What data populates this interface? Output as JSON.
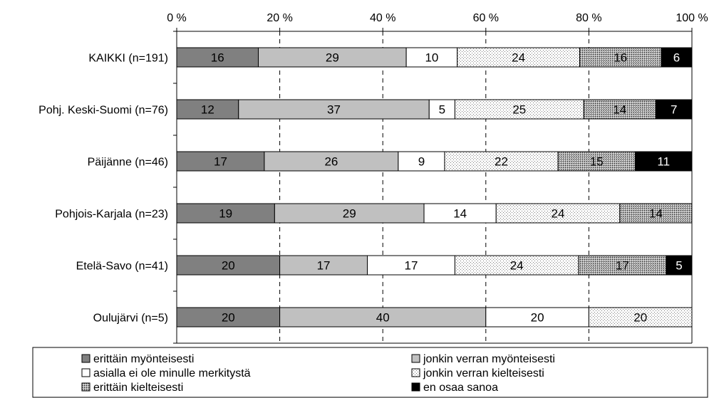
{
  "chart_data": {
    "type": "bar",
    "orientation": "horizontal",
    "stacked": true,
    "percent_axis": true,
    "title": "",
    "xlabel": "",
    "ylabel": "",
    "xlim": [
      0,
      100
    ],
    "x_ticks": [
      "0 %",
      "20 %",
      "40 %",
      "60 %",
      "80 %",
      "100 %"
    ],
    "grid": "dashed vertical",
    "legend_position": "bottom",
    "categories": [
      "KAIKKI (n=191)",
      "Pohj. Keski-Suomi (n=76)",
      "Päijänne (n=46)",
      "Pohjois-Karjala (n=23)",
      "Etelä-Savo (n=41)",
      "Oulujärvi (n=5)"
    ],
    "series": [
      {
        "name": "erittäin myönteisesti",
        "color": "#808080",
        "values": [
          16,
          12,
          17,
          19,
          20,
          20
        ],
        "labels": [
          "16",
          "12",
          "17",
          "19",
          "20",
          "20"
        ]
      },
      {
        "name": "jonkin verran myönteisesti",
        "color": "#c0c0c0",
        "values": [
          29,
          37,
          26,
          29,
          17,
          40
        ],
        "labels": [
          "29",
          "37",
          "26",
          "29",
          "17",
          "40"
        ]
      },
      {
        "name": "asialla ei ole minulle merkitystä",
        "color": "#ffffff",
        "values": [
          10,
          5,
          9,
          14,
          17,
          20
        ],
        "labels": [
          "10",
          "5",
          "9",
          "14",
          "17",
          "20"
        ]
      },
      {
        "name": "jonkin verran kielteisesti",
        "color": "#e0e0e0",
        "values": [
          24,
          25,
          22,
          24,
          24,
          20
        ],
        "labels": [
          "24",
          "25",
          "22",
          "24",
          "24",
          "20"
        ]
      },
      {
        "name": "erittäin kielteisesti",
        "color": "#a0a0a0",
        "values": [
          16,
          14,
          15,
          14,
          17,
          0
        ],
        "labels": [
          "16",
          "14",
          "15",
          "14",
          "17",
          ""
        ]
      },
      {
        "name": "en osaa sanoa",
        "color": "#000000",
        "values": [
          6,
          7,
          11,
          0,
          5,
          0
        ],
        "labels": [
          "6",
          "7",
          "11",
          "",
          "5",
          ""
        ]
      }
    ]
  }
}
